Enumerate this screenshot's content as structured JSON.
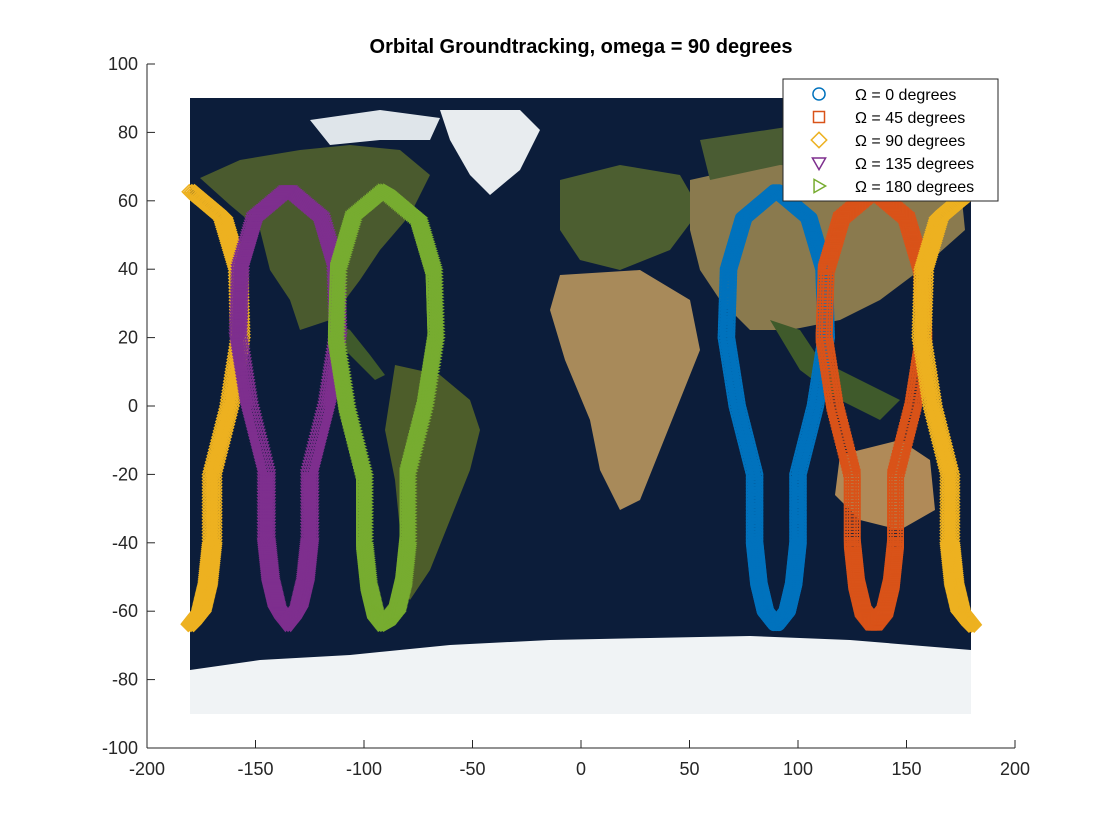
{
  "chart_data": {
    "type": "scatter",
    "title": "Orbital Groundtracking, omega = 90 degrees",
    "xlabel": "",
    "ylabel": "",
    "xlim": [
      -200,
      200
    ],
    "ylim": [
      -100,
      100
    ],
    "xticks": [
      "-200",
      "-150",
      "-100",
      "-50",
      "0",
      "50",
      "100",
      "150",
      "200"
    ],
    "yticks": [
      "100",
      "80",
      "60",
      "40",
      "20",
      "0",
      "-20",
      "-40",
      "-60",
      "-80",
      "-100"
    ],
    "background": "world map (satellite imagery), lon -180..180, lat -90..90",
    "legend_position": "top-right",
    "loop_shape": {
      "description": "figure-eight ground track per series, parameterized by longitude offset from reference and latitude",
      "points": [
        [
          -10,
          -40
        ],
        [
          -8,
          -52
        ],
        [
          -5,
          -60
        ],
        [
          0,
          -64
        ],
        [
          5,
          -60
        ],
        [
          8,
          -52
        ],
        [
          10,
          -40
        ],
        [
          10,
          -20
        ],
        [
          18,
          0
        ],
        [
          23,
          20
        ],
        [
          22,
          40
        ],
        [
          15,
          55
        ],
        [
          0,
          63
        ],
        [
          -15,
          55
        ],
        [
          -22,
          40
        ],
        [
          -23,
          20
        ],
        [
          -18,
          0
        ],
        [
          -10,
          -20
        ],
        [
          -10,
          -40
        ]
      ]
    },
    "series": [
      {
        "name": "Ω = 0 degrees",
        "marker": "circle",
        "color": "#0072BD",
        "reference_lon": 90
      },
      {
        "name": "Ω = 45 degrees",
        "marker": "square",
        "color": "#D95319",
        "reference_lon": 135
      },
      {
        "name": "Ω = 90 degrees",
        "marker": "diamond",
        "color": "#EDB120",
        "reference_lon": 180,
        "wraps": true
      },
      {
        "name": "Ω = 135 degrees",
        "marker": "triangle-down",
        "color": "#7E2F8E",
        "reference_lon": -135
      },
      {
        "name": "Ω = 180 degrees",
        "marker": "triangle-right",
        "color": "#77AC30",
        "reference_lon": -90
      }
    ]
  }
}
